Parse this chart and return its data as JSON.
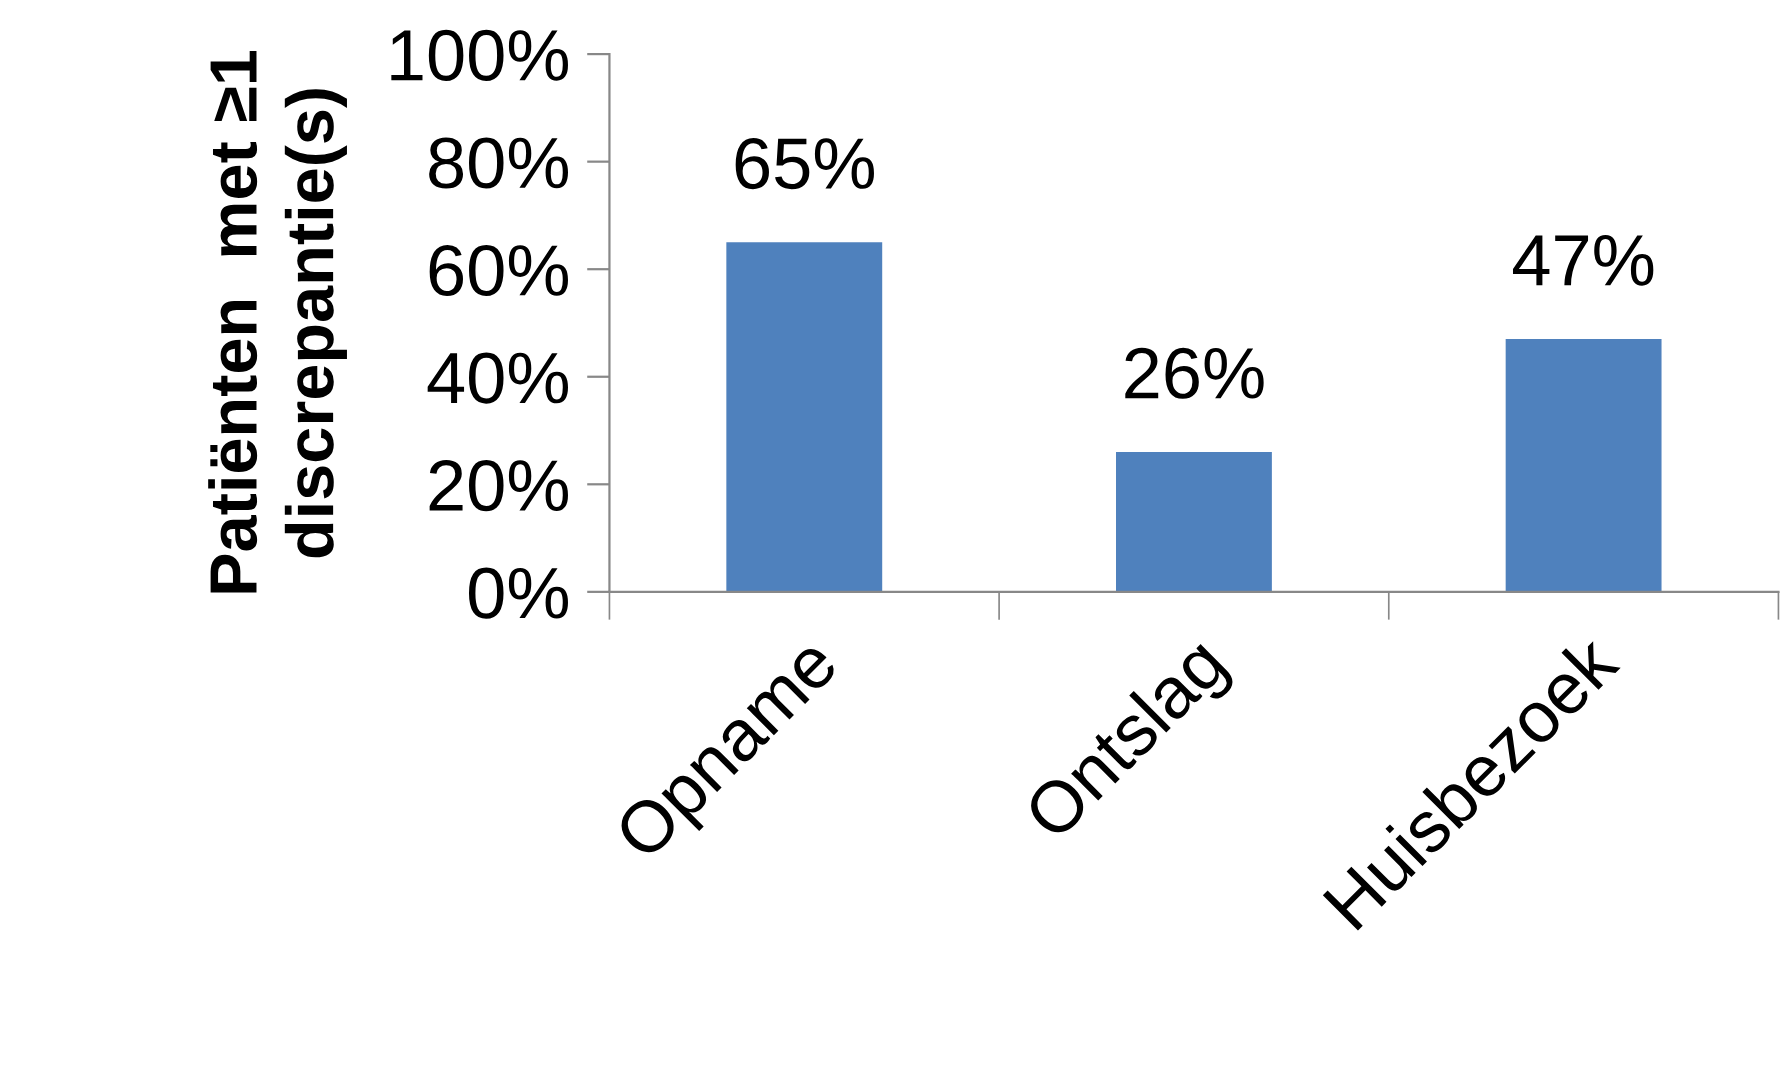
{
  "chart_data": {
    "type": "bar",
    "ylabel": "Patiënten  met ≥1\ndiscrepantie(s)",
    "categories": [
      "Opname",
      "Ontslag",
      "Huisbezoek"
    ],
    "values": [
      65,
      26,
      47
    ],
    "value_labels": [
      "65%",
      "26%",
      "47%"
    ],
    "color": "#4f81bd",
    "ylim": [
      0,
      100
    ],
    "yticks": [
      {
        "value": 0,
        "label": "0%"
      },
      {
        "value": 20,
        "label": "20%"
      },
      {
        "value": 40,
        "label": "40%"
      },
      {
        "value": 60,
        "label": "60%"
      },
      {
        "value": 80,
        "label": "80%"
      },
      {
        "value": 100,
        "label": "100%"
      }
    ],
    "grid": false,
    "legend": false
  }
}
